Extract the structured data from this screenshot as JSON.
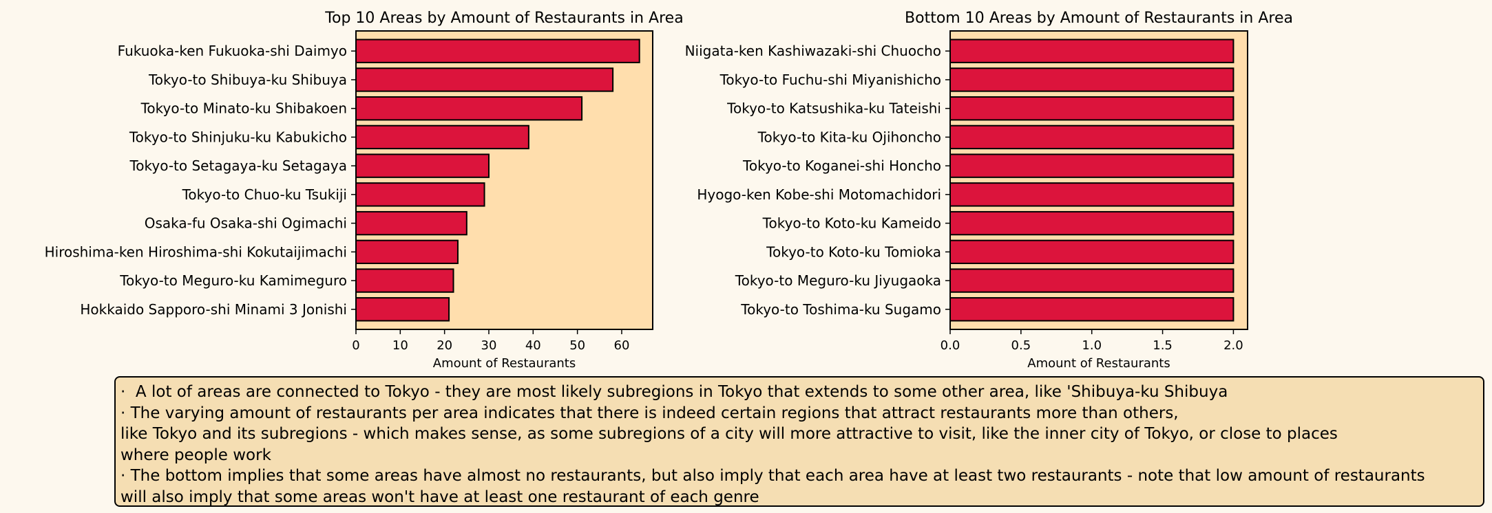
{
  "chart_data": [
    {
      "type": "bar",
      "orientation": "horizontal",
      "title": "Top 10 Areas by Amount of Restaurants in Area",
      "xlabel": "Amount of Restaurants",
      "ylabel": "",
      "xlim": [
        0,
        67
      ],
      "xticks": [
        "0",
        "10",
        "20",
        "30",
        "40",
        "50",
        "60"
      ],
      "xtick_values": [
        0,
        10,
        20,
        30,
        40,
        50,
        60
      ],
      "categories": [
        "Fukuoka-ken Fukuoka-shi Daimyo",
        "Tokyo-to Shibuya-ku Shibuya",
        "Tokyo-to Minato-ku Shibakoen",
        "Tokyo-to Shinjuku-ku Kabukicho",
        "Tokyo-to Setagaya-ku Setagaya",
        "Tokyo-to Chuo-ku Tsukiji",
        "Osaka-fu Osaka-shi Ogimachi",
        "Hiroshima-ken Hiroshima-shi Kokutaijimachi",
        "Tokyo-to Meguro-ku Kamimeguro",
        "Hokkaido Sapporo-shi Minami 3 Jonishi"
      ],
      "values": [
        64,
        58,
        51,
        39,
        30,
        29,
        25,
        23,
        22,
        21
      ],
      "grid": false,
      "bar_color": "#dc143c",
      "plot_background": "#ffdead"
    },
    {
      "type": "bar",
      "orientation": "horizontal",
      "title": "Bottom 10 Areas by Amount of Restaurants in Area",
      "xlabel": "Amount of Restaurants",
      "ylabel": "",
      "xlim": [
        0,
        2.1
      ],
      "xticks": [
        "0.0",
        "0.5",
        "1.0",
        "1.5",
        "2.0"
      ],
      "xtick_values": [
        0,
        0.5,
        1.0,
        1.5,
        2.0
      ],
      "categories": [
        "Niigata-ken Kashiwazaki-shi Chuocho",
        "Tokyo-to Fuchu-shi Miyanishicho",
        "Tokyo-to Katsushika-ku Tateishi",
        "Tokyo-to Kita-ku Ojihoncho",
        "Tokyo-to Koganei-shi Honcho",
        "Hyogo-ken Kobe-shi Motomachidori",
        "Tokyo-to Koto-ku Kameido",
        "Tokyo-to Koto-ku Tomioka",
        "Tokyo-to Meguro-ku Jiyugaoka",
        "Tokyo-to Toshima-ku Sugamo"
      ],
      "values": [
        2,
        2,
        2,
        2,
        2,
        2,
        2,
        2,
        2,
        2
      ],
      "grid": false,
      "bar_color": "#dc143c",
      "plot_background": "#ffdead"
    }
  ],
  "notes": [
    "·  A lot of areas are connected to Tokyo - they are most likely subregions in Tokyo that extends to some other area, like 'Shibuya-ku Shibuya",
    "· The varying amount of restaurants per area indicates that there is indeed certain regions that attract restaurants more than others,",
    "like Tokyo and its subregions - which makes sense, as some subregions of a city will more attractive to visit, like the inner city of Tokyo, or close to places",
    "where people work",
    "· The bottom implies that some areas have almost no restaurants, but also imply that each area have at least two restaurants - note that low amount of restaurants",
    "will also imply that some areas won't have at least one restaurant of each genre"
  ]
}
